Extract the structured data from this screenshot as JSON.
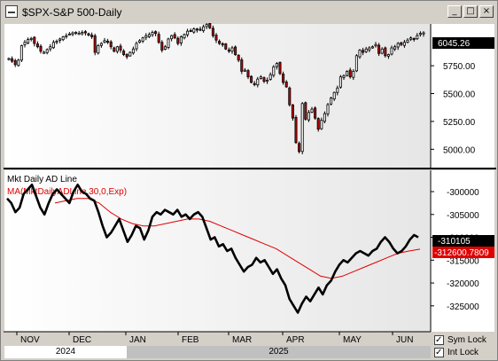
{
  "window": {
    "title": "$SPX-S&P 500-Daily",
    "controls": {
      "minimize": "_",
      "maximize": "□",
      "close": "×"
    }
  },
  "price_panel": {
    "last_price": "6045.26",
    "y_ticks": [
      "5750.00",
      "5500.00",
      "5250.00",
      "5000.00"
    ]
  },
  "indicator_panel": {
    "title": "Mkt Daily AD Line",
    "ma_label": "MA(MktDailyADLine,30,0,Exp)",
    "last_value": "-310105",
    "last_ma_value": "-312600.7809",
    "y_ticks": [
      "-300000",
      "-305000",
      "-310000",
      "-315000",
      "-320000",
      "-325000"
    ]
  },
  "x_axis": {
    "months": [
      "NOV",
      "DEC",
      "JAN",
      "FEB",
      "MAR",
      "APR",
      "MAY",
      "JUN"
    ],
    "years": [
      "2024",
      "2025"
    ]
  },
  "locks": {
    "sym_lock": {
      "label": "Sym Lock",
      "checked": true
    },
    "int_lock": {
      "label": "Int Lock",
      "checked": true
    }
  },
  "colors": {
    "up_candle": "#ffffff",
    "down_candle": "#c00000",
    "ad_line": "#000000",
    "ma_line": "#e00000",
    "last_price_bg": "#000000"
  },
  "chart_data": [
    {
      "type": "candlestick",
      "title": "$SPX-S&P 500-Daily",
      "ylim": [
        4835,
        6125
      ],
      "closes": [
        5815,
        5790,
        5760,
        5800,
        5930,
        5960,
        5985,
        5995,
        5950,
        5920,
        5880,
        5870,
        5895,
        5920,
        5960,
        5970,
        5990,
        6010,
        6020,
        6035,
        6045,
        6050,
        6040,
        6050,
        6045,
        6025,
        6010,
        5870,
        5930,
        5950,
        5975,
        5960,
        5920,
        5880,
        5920,
        5890,
        5850,
        5830,
        5870,
        5900,
        5950,
        5975,
        6000,
        6020,
        6030,
        6050,
        6040,
        5960,
        5890,
        5920,
        5990,
        6020,
        6000,
        5950,
        6010,
        6030,
        6060,
        6060,
        6080,
        6070,
        6070,
        6100,
        6120,
        6090,
        6020,
        5980,
        5950,
        5940,
        5900,
        5880,
        5910,
        5850,
        5800,
        5700,
        5710,
        5650,
        5600,
        5580,
        5630,
        5650,
        5610,
        5620,
        5670,
        5740,
        5770,
        5680,
        5600,
        5560,
        5400,
        5280,
        5060,
        4980,
        5410,
        5270,
        5330,
        5360,
        5280,
        5180,
        5260,
        5320,
        5400,
        5460,
        5510,
        5550,
        5650,
        5660,
        5700,
        5650,
        5700,
        5840,
        5890,
        5870,
        5900,
        5910,
        5920,
        5940,
        5860,
        5900,
        5840,
        5850,
        5910,
        5920,
        5950,
        5940,
        5960,
        5980,
        6000,
        5990,
        6020,
        6040,
        6045.26
      ],
      "last": 6045.26
    },
    {
      "type": "line",
      "series": [
        {
          "name": "Mkt Daily AD Line",
          "values": [
            -301500,
            -302500,
            -304500,
            -303500,
            -300500,
            -299500,
            -298500,
            -301000,
            -303500,
            -305000,
            -302500,
            -300500,
            -299500,
            -300500,
            -301500,
            -302500,
            -300000,
            -298500,
            -300000,
            -300500,
            -301500,
            -302000,
            -304500,
            -307500,
            -310000,
            -309000,
            -307500,
            -306000,
            -308500,
            -311000,
            -309500,
            -307500,
            -308000,
            -310500,
            -308500,
            -305500,
            -304500,
            -305000,
            -304000,
            -304500,
            -305000,
            -304000,
            -305500,
            -305000,
            -306000,
            -305000,
            -304500,
            -305500,
            -308000,
            -310500,
            -310000,
            -312000,
            -311500,
            -313000,
            -312500,
            -314500,
            -316000,
            -317500,
            -316500,
            -316000,
            -314500,
            -315500,
            -315000,
            -316500,
            -318000,
            -317000,
            -319000,
            -320500,
            -323500,
            -325000,
            -326500,
            -324500,
            -323000,
            -324000,
            -322500,
            -321000,
            -322500,
            -320500,
            -319500,
            -317500,
            -316000,
            -315000,
            -315500,
            -314500,
            -313500,
            -313000,
            -313500,
            -314000,
            -313000,
            -312500,
            -311000,
            -310000,
            -311000,
            -312500,
            -313500,
            -313000,
            -312000,
            -310500,
            -309500,
            -310000
          ]
        },
        {
          "name": "MA(MktDailyADLine,30,0,Exp)",
          "values": [
            -302500,
            -302000,
            -301500,
            -301500,
            -302500,
            -304500,
            -306000,
            -307000,
            -307500,
            -307500,
            -307000,
            -306500,
            -306000,
            -306000,
            -306500,
            -307500,
            -308500,
            -309500,
            -310500,
            -311500,
            -312500,
            -314000,
            -315500,
            -317000,
            -318500,
            -319000,
            -318500,
            -317500,
            -316500,
            -315500,
            -314500,
            -313500,
            -313000,
            -312600.7809
          ]
        }
      ],
      "last": -310105,
      "last_ma": -312600.7809
    }
  ]
}
